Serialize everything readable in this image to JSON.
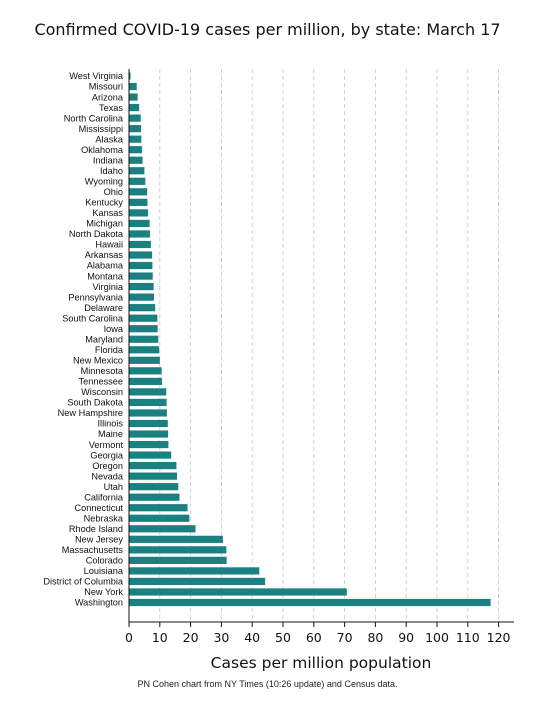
{
  "chart_data": {
    "type": "bar",
    "orientation": "horizontal",
    "title": "Confirmed COVID-19 cases per million, by state: March 17",
    "xlabel": "Cases per million population",
    "ylabel": "",
    "caption": "PN Cohen chart from NY Times (10:26 update) and Census data.",
    "xlim": [
      0,
      125
    ],
    "xticks": [
      0,
      10,
      20,
      30,
      40,
      50,
      60,
      70,
      80,
      90,
      100,
      110,
      120
    ],
    "grid": "vertical dashed",
    "bar_color": "#1a8080",
    "categories": [
      "West Virginia",
      "Missouri",
      "Arizona",
      "Texas",
      "North Carolina",
      "Mississippi",
      "Alaska",
      "Oklahoma",
      "Indiana",
      "Idaho",
      "Wyoming",
      "Ohio",
      "Kentucky",
      "Kansas",
      "Michigan",
      "North Dakota",
      "Hawaii",
      "Arkansas",
      "Alabama",
      "Montana",
      "Virginia",
      "Pennsylvania",
      "Delaware",
      "South Carolina",
      "Iowa",
      "Maryland",
      "Florida",
      "New Mexico",
      "Minnesota",
      "Tennessee",
      "Wisconsin",
      "South Dakota",
      "New Hampshire",
      "Illinois",
      "Maine",
      "Vermont",
      "Georgia",
      "Oregon",
      "Nevada",
      "Utah",
      "California",
      "Connecticut",
      "Nebraska",
      "Rhode Island",
      "New Jersey",
      "Massachusetts",
      "Colorado",
      "Louisiana",
      "District of Columbia",
      "New York",
      "Washington"
    ],
    "values": [
      0.5,
      2.5,
      2.8,
      3.3,
      3.8,
      3.9,
      4.0,
      4.2,
      4.4,
      5.0,
      5.3,
      5.9,
      6.0,
      6.2,
      6.7,
      6.8,
      7.1,
      7.5,
      7.6,
      7.7,
      8.0,
      8.1,
      8.5,
      9.2,
      9.3,
      9.5,
      9.8,
      10.0,
      10.6,
      10.7,
      12.1,
      12.2,
      12.3,
      12.6,
      12.7,
      12.8,
      13.7,
      15.4,
      15.6,
      16.0,
      16.4,
      19.0,
      19.6,
      21.6,
      30.5,
      31.6,
      31.7,
      42.3,
      44.2,
      70.7,
      117.4
    ]
  }
}
